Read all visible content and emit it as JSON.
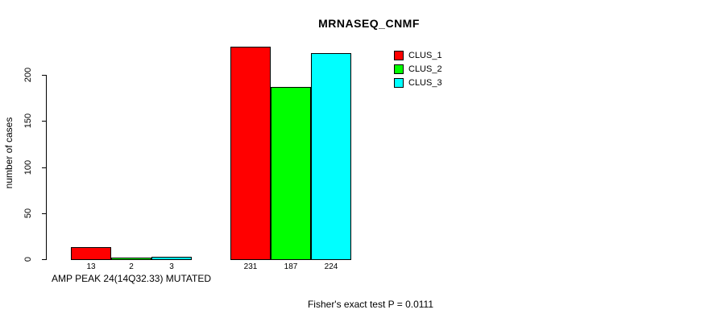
{
  "chart_data": {
    "type": "bar",
    "title": "MRNASEQ_CNMF",
    "ylabel": "number of cases",
    "xlabel": "AMP PEAK 24(14Q32.33) MUTATED",
    "annotation": "Fisher's exact test P = 0.0111",
    "categories": [
      "AMP PEAK 24(14Q32.33) MUTATED",
      ""
    ],
    "series": [
      {
        "name": "CLUS_1",
        "color": "#ff0000",
        "values": [
          13,
          231
        ]
      },
      {
        "name": "CLUS_2",
        "color": "#00ff00",
        "values": [
          2,
          187
        ]
      },
      {
        "name": "CLUS_3",
        "color": "#00ffff",
        "values": [
          3,
          224
        ]
      }
    ],
    "bar_value_labels": [
      [
        13,
        2,
        3
      ],
      [
        231,
        187,
        224
      ]
    ],
    "yticks": [
      0,
      50,
      100,
      150,
      200
    ],
    "ylim": [
      0,
      235
    ],
    "grid": false,
    "legend_position": "top-right",
    "axis_color": "#000000",
    "background_color": "#ffffff"
  }
}
